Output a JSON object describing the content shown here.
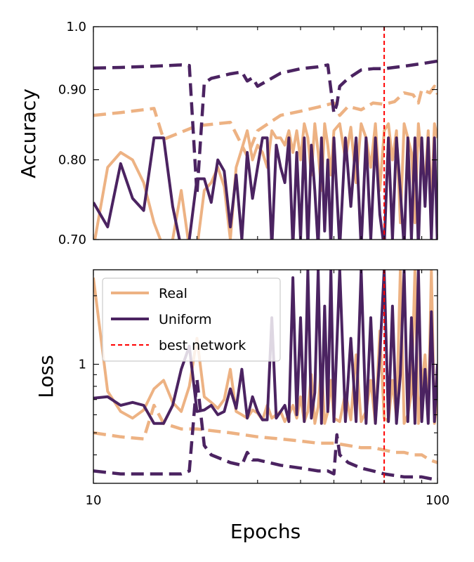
{
  "colors": {
    "real": "#EDB283",
    "uniform": "#4B2361",
    "best": "#FF0000"
  },
  "chart_data": [
    {
      "type": "line",
      "panel": "accuracy",
      "ylabel": "Accuracy",
      "xscale": "log",
      "yscale": "log",
      "xlim": [
        10,
        100
      ],
      "ylim": [
        0.7,
        1.0
      ],
      "yticks": [
        {
          "value": 0.7,
          "label": "0.70"
        },
        {
          "value": 0.8,
          "label": "0.80"
        },
        {
          "value": 0.9,
          "label": "0.90"
        },
        {
          "value": 1.0,
          "label": "1.0"
        }
      ],
      "best_network_epoch": 70,
      "series": [
        {
          "name": "Real train",
          "color_key": "real",
          "dash": true,
          "x": [
            10,
            12,
            15,
            16,
            18,
            20,
            25,
            28,
            30,
            35,
            40,
            45,
            50,
            52,
            55,
            60,
            65,
            70,
            75,
            80,
            85,
            88,
            90,
            95,
            98,
            100
          ],
          "y": [
            0.862,
            0.866,
            0.872,
            0.828,
            0.838,
            0.847,
            0.852,
            0.805,
            0.84,
            0.862,
            0.868,
            0.874,
            0.88,
            0.862,
            0.875,
            0.87,
            0.88,
            0.878,
            0.882,
            0.895,
            0.892,
            0.88,
            0.9,
            0.895,
            0.905,
            0.893
          ]
        },
        {
          "name": "Uniform train",
          "color_key": "uniform",
          "dash": true,
          "x": [
            10,
            12,
            15,
            18,
            19,
            20,
            21,
            22,
            25,
            27,
            28,
            29,
            30,
            35,
            40,
            45,
            48,
            50,
            51,
            52,
            55,
            60,
            65,
            70,
            80,
            90,
            100
          ],
          "y": [
            0.933,
            0.934,
            0.936,
            0.938,
            0.937,
            0.755,
            0.91,
            0.917,
            0.924,
            0.927,
            0.913,
            0.918,
            0.905,
            0.925,
            0.932,
            0.935,
            0.938,
            0.865,
            0.878,
            0.905,
            0.917,
            0.93,
            0.932,
            0.932,
            0.936,
            0.94,
            0.944
          ]
        },
        {
          "name": "Real val",
          "color_key": "real",
          "dash": false,
          "x": [
            10,
            11,
            12,
            13,
            14,
            15,
            16,
            17,
            18,
            19,
            20,
            21,
            22,
            23,
            24,
            25,
            26,
            27,
            28,
            29,
            30,
            31,
            32,
            33,
            34,
            35,
            36,
            37,
            38,
            39,
            40,
            41,
            42,
            43,
            44,
            45,
            46,
            47,
            48,
            49,
            50,
            52,
            54,
            56,
            58,
            60,
            62,
            64,
            66,
            68,
            70,
            72,
            74,
            76,
            78,
            80,
            82,
            84,
            86,
            88,
            90,
            92,
            94,
            96,
            98,
            100
          ],
          "y": [
            0.69,
            0.79,
            0.81,
            0.8,
            0.77,
            0.72,
            0.69,
            0.7,
            0.76,
            0.69,
            0.69,
            0.76,
            0.77,
            0.79,
            0.765,
            0.7,
            0.79,
            0.815,
            0.84,
            0.8,
            0.82,
            0.81,
            0.79,
            0.84,
            0.83,
            0.83,
            0.82,
            0.84,
            0.81,
            0.84,
            0.8,
            0.85,
            0.83,
            0.78,
            0.85,
            0.81,
            0.76,
            0.85,
            0.82,
            0.78,
            0.84,
            0.85,
            0.8,
            0.845,
            0.77,
            0.85,
            0.83,
            0.79,
            0.85,
            0.76,
            0.84,
            0.85,
            0.8,
            0.84,
            0.72,
            0.85,
            0.83,
            0.81,
            0.72,
            0.85,
            0.8,
            0.77,
            0.84,
            0.74,
            0.85,
            0.83
          ]
        },
        {
          "name": "Uniform val",
          "color_key": "uniform",
          "dash": false,
          "x": [
            10,
            11,
            12,
            13,
            14,
            15,
            16,
            17,
            18,
            19,
            20,
            21,
            22,
            23,
            24,
            25,
            26,
            27,
            28,
            29,
            30,
            31,
            32,
            33,
            34,
            35,
            36,
            37,
            38,
            39,
            40,
            41,
            42,
            43,
            44,
            45,
            46,
            47,
            48,
            49,
            50,
            52,
            54,
            56,
            58,
            60,
            62,
            64,
            66,
            68,
            70,
            72,
            74,
            76,
            78,
            80,
            82,
            84,
            86,
            88,
            90,
            92,
            94,
            96,
            98,
            100
          ],
          "y": [
            0.745,
            0.715,
            0.795,
            0.75,
            0.735,
            0.83,
            0.83,
            0.74,
            0.69,
            0.7,
            0.775,
            0.775,
            0.745,
            0.8,
            0.785,
            0.715,
            0.78,
            0.7,
            0.81,
            0.75,
            0.79,
            0.83,
            0.83,
            0.69,
            0.82,
            0.79,
            0.77,
            0.83,
            0.69,
            0.81,
            0.7,
            0.83,
            0.69,
            0.82,
            0.76,
            0.69,
            0.83,
            0.71,
            0.8,
            0.69,
            0.83,
            0.69,
            0.83,
            0.74,
            0.83,
            0.69,
            0.83,
            0.7,
            0.83,
            0.73,
            0.69,
            0.83,
            0.7,
            0.83,
            0.76,
            0.69,
            0.83,
            0.7,
            0.83,
            0.69,
            0.83,
            0.74,
            0.83,
            0.7,
            0.83,
            0.69
          ]
        }
      ]
    },
    {
      "type": "line",
      "panel": "loss",
      "xlabel": "Epochs",
      "ylabel": "Loss",
      "xscale": "log",
      "yscale": "log",
      "xlim": [
        10,
        100
      ],
      "ylim": [
        0.3,
        2.6
      ],
      "xticks": [
        {
          "value": 10,
          "label": "10"
        },
        {
          "value": 100,
          "label": "100"
        }
      ],
      "yticks": [
        {
          "value": 1,
          "label": "1"
        }
      ],
      "best_network_epoch": 70,
      "legend": {
        "location": "upper-left",
        "entries": [
          {
            "label": "Real",
            "color_key": "real",
            "dash": false
          },
          {
            "label": "Uniform",
            "color_key": "uniform",
            "dash": false
          },
          {
            "label": "best network",
            "color_key": "best",
            "dash": true
          }
        ]
      },
      "series": [
        {
          "name": "Real train",
          "color_key": "real",
          "dash": true,
          "x": [
            10,
            12,
            14,
            15,
            16,
            18,
            20,
            25,
            30,
            35,
            40,
            45,
            50,
            55,
            60,
            65,
            70,
            75,
            80,
            85,
            90,
            95,
            100
          ],
          "y": [
            0.5,
            0.48,
            0.47,
            0.66,
            0.55,
            0.52,
            0.52,
            0.5,
            0.48,
            0.47,
            0.46,
            0.45,
            0.45,
            0.44,
            0.43,
            0.43,
            0.42,
            0.41,
            0.41,
            0.4,
            0.4,
            0.38,
            0.37
          ]
        },
        {
          "name": "Uniform train",
          "color_key": "uniform",
          "dash": true,
          "x": [
            10,
            12,
            15,
            18,
            19,
            20,
            21,
            22,
            25,
            27,
            28,
            29,
            30,
            35,
            40,
            45,
            48,
            50,
            51,
            52,
            55,
            60,
            65,
            70,
            80,
            90,
            100
          ],
          "y": [
            0.34,
            0.33,
            0.33,
            0.33,
            0.34,
            0.86,
            0.44,
            0.4,
            0.37,
            0.36,
            0.41,
            0.38,
            0.38,
            0.36,
            0.35,
            0.34,
            0.34,
            0.33,
            0.49,
            0.4,
            0.37,
            0.35,
            0.34,
            0.33,
            0.32,
            0.32,
            0.31
          ]
        },
        {
          "name": "Real val",
          "color_key": "real",
          "dash": false,
          "x": [
            10,
            11,
            12,
            13,
            14,
            15,
            16,
            17,
            18,
            19,
            20,
            21,
            22,
            23,
            24,
            25,
            26,
            27,
            28,
            29,
            30,
            31,
            32,
            33,
            34,
            35,
            36,
            37,
            38,
            39,
            40,
            41,
            42,
            43,
            44,
            45,
            46,
            47,
            48,
            49,
            50,
            52,
            54,
            56,
            58,
            60,
            62,
            64,
            66,
            68,
            70,
            72,
            74,
            76,
            78,
            80,
            82,
            84,
            86,
            88,
            90,
            92,
            94,
            96,
            98,
            100
          ],
          "y": [
            2.4,
            0.76,
            0.62,
            0.58,
            0.63,
            0.78,
            0.85,
            0.68,
            0.62,
            0.8,
            1.3,
            0.72,
            0.68,
            0.64,
            0.7,
            0.95,
            0.62,
            0.6,
            0.58,
            0.63,
            0.61,
            0.57,
            0.66,
            0.58,
            0.6,
            0.62,
            0.56,
            0.6,
            0.66,
            0.58,
            0.72,
            0.56,
            0.62,
            0.9,
            0.55,
            0.65,
            1.0,
            0.55,
            0.62,
            0.85,
            0.58,
            0.56,
            0.75,
            0.57,
            1.1,
            0.56,
            0.62,
            0.85,
            0.55,
            1.4,
            0.58,
            0.56,
            0.85,
            0.58,
            2.6,
            0.55,
            0.6,
            0.75,
            2.6,
            0.55,
            0.8,
            1.1,
            0.58,
            2.6,
            0.55,
            0.7
          ]
        },
        {
          "name": "Uniform val",
          "color_key": "uniform",
          "dash": false,
          "x": [
            10,
            11,
            12,
            13,
            14,
            15,
            16,
            17,
            18,
            19,
            20,
            21,
            22,
            23,
            24,
            25,
            26,
            27,
            28,
            29,
            30,
            31,
            32,
            33,
            34,
            35,
            36,
            37,
            38,
            39,
            40,
            41,
            42,
            43,
            44,
            45,
            46,
            47,
            48,
            49,
            50,
            52,
            54,
            56,
            58,
            60,
            62,
            64,
            66,
            68,
            70,
            72,
            74,
            76,
            78,
            80,
            82,
            84,
            86,
            88,
            90,
            92,
            94,
            96,
            98,
            100
          ],
          "y": [
            0.71,
            0.72,
            0.66,
            0.68,
            0.66,
            0.55,
            0.55,
            0.66,
            0.95,
            1.2,
            0.62,
            0.63,
            0.66,
            0.6,
            0.62,
            0.78,
            0.64,
            0.95,
            0.58,
            0.72,
            0.62,
            0.57,
            0.57,
            1.6,
            0.58,
            0.62,
            0.66,
            0.56,
            2.4,
            0.6,
            1.6,
            0.56,
            2.6,
            0.58,
            0.75,
            2.6,
            0.55,
            1.8,
            0.62,
            2.6,
            0.56,
            2.6,
            0.56,
            1.3,
            0.56,
            2.6,
            0.55,
            1.6,
            0.55,
            1.1,
            2.6,
            0.56,
            1.8,
            0.55,
            0.9,
            2.6,
            0.56,
            1.6,
            0.55,
            2.6,
            0.56,
            0.95,
            0.55,
            1.7,
            0.56,
            1.0
          ]
        }
      ]
    }
  ]
}
